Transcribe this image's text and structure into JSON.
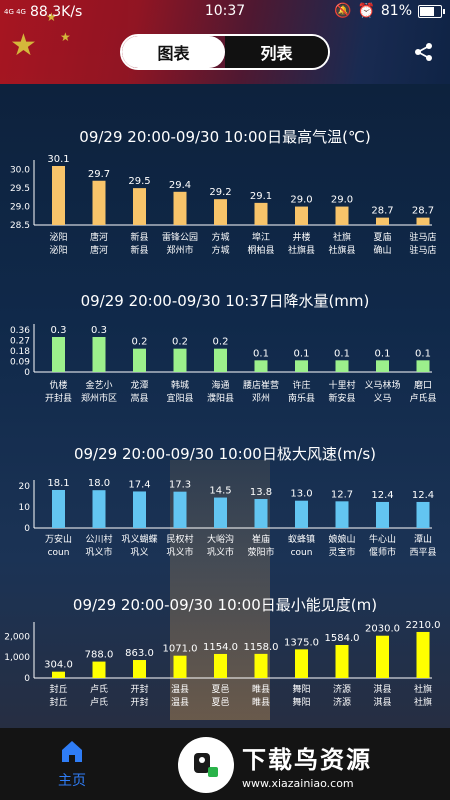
{
  "status_bar": {
    "signal": "4G 4G",
    "speed": "88.3K/s",
    "time": "10:37",
    "battery": "81%",
    "battery_level": 0.81
  },
  "toggle": {
    "chart_label": "图表",
    "list_label": "列表"
  },
  "share": {
    "icon": "share-icon"
  },
  "colors": {
    "temp": "#f8c46a",
    "rain": "#9cf08c",
    "wind": "#63c5f1",
    "vis": "#ffff00"
  },
  "chart_data": [
    {
      "type": "bar",
      "title": "09/29 20:00-09/30 10:00日最高气温(℃)",
      "categories": [
        [
          "泌阳",
          "泌阳"
        ],
        [
          "唐河",
          "唐河"
        ],
        [
          "新县",
          "新县"
        ],
        [
          "雷锋公园",
          "郑州市"
        ],
        [
          "方城",
          "方城"
        ],
        [
          "埠江",
          "桐柏县"
        ],
        [
          "井楼",
          "社旗县"
        ],
        [
          "社旗",
          "社旗县"
        ],
        [
          "夏庙",
          "确山"
        ],
        [
          "驻马店",
          "驻马店"
        ]
      ],
      "values": [
        30.1,
        29.7,
        29.5,
        29.4,
        29.2,
        29.1,
        29.0,
        29.0,
        28.7,
        28.7
      ],
      "data_labels": [
        "30.1",
        "29.7",
        "29.5",
        "29.4",
        "29.2",
        "29.1",
        "29.0",
        "29.0",
        "28.7",
        "28.7"
      ],
      "yticks": [
        "30.0",
        "29.5",
        "29.0",
        "28.5"
      ],
      "ylim": [
        28.5,
        30.1
      ],
      "xlabel": "",
      "ylabel": "",
      "color": "#f8c46a"
    },
    {
      "type": "bar",
      "title": "09/29 20:00-09/30 10:37日降水量(mm)",
      "categories": [
        [
          "仇楼",
          "开封县"
        ],
        [
          "金艺小",
          "郑州市区"
        ],
        [
          "龙潭",
          "嵩县"
        ],
        [
          "韩城",
          "宜阳县"
        ],
        [
          "海通",
          "濮阳县"
        ],
        [
          "腰店崔营",
          "邓州"
        ],
        [
          "许庄",
          "南乐县"
        ],
        [
          "十里村",
          "新安县"
        ],
        [
          "义马林场",
          "义马"
        ],
        [
          "磨口",
          "卢氏县"
        ]
      ],
      "values": [
        0.3,
        0.3,
        0.2,
        0.2,
        0.2,
        0.1,
        0.1,
        0.1,
        0.1,
        0.1
      ],
      "data_labels": [
        "0.3",
        "0.3",
        "0.2",
        "0.2",
        "0.2",
        "0.1",
        "0.1",
        "0.1",
        "0.1",
        "0.1"
      ],
      "yticks": [
        "0.36",
        "0.27",
        "0.18",
        "0.09",
        "0"
      ],
      "ylim": [
        0,
        0.36
      ],
      "xlabel": "",
      "ylabel": "",
      "color": "#9cf08c"
    },
    {
      "type": "bar",
      "title": "09/29 20:00-09/30 10:00日极大风速(m/s)",
      "categories": [
        [
          "万安山",
          "coun"
        ],
        [
          "公川村",
          "巩义市"
        ],
        [
          "巩义蝴蝶",
          "巩义"
        ],
        [
          "民权村",
          "巩义市"
        ],
        [
          "大峪沟",
          "巩义市"
        ],
        [
          "崔庙",
          "荥阳市"
        ],
        [
          "蚁蜂镇",
          "coun"
        ],
        [
          "娘娘山",
          "灵宝市"
        ],
        [
          "牛心山",
          "偃师市"
        ],
        [
          "潭山",
          "西平县"
        ]
      ],
      "values": [
        18.1,
        18.0,
        17.4,
        17.3,
        14.5,
        13.8,
        13.0,
        12.7,
        12.4,
        12.4
      ],
      "data_labels": [
        "18.1",
        "18.0",
        "17.4",
        "17.3",
        "14.5",
        "13.8",
        "13.0",
        "12.7",
        "12.4",
        "12.4"
      ],
      "yticks": [
        "20",
        "10",
        "0"
      ],
      "ylim": [
        0,
        20
      ],
      "xlabel": "",
      "ylabel": "",
      "color": "#63c5f1"
    },
    {
      "type": "bar",
      "title": "09/29 20:00-09/30 10:00日最小能见度(m)",
      "categories": [
        [
          "封丘",
          "封丘"
        ],
        [
          "卢氏",
          "卢氏"
        ],
        [
          "开封",
          "开封"
        ],
        [
          "温县",
          "温县"
        ],
        [
          "夏邑",
          "夏邑"
        ],
        [
          "睢县",
          "睢县"
        ],
        [
          "舞阳",
          "舞阳"
        ],
        [
          "济源",
          "济源"
        ],
        [
          "淇县",
          "淇县"
        ],
        [
          "社旗",
          "社旗"
        ]
      ],
      "values": [
        304.0,
        788.0,
        863.0,
        1071.0,
        1154.0,
        1158.0,
        1375.0,
        1584.0,
        2030.0,
        2210.0
      ],
      "data_labels": [
        "304.0",
        "788.0",
        "863.0",
        "1071.0",
        "1154.0",
        "1158.0",
        "1375.0",
        "1584.0",
        "2030.0",
        "2210.0"
      ],
      "yticks": [
        "2,000",
        "1,000",
        "0"
      ],
      "ylim": [
        0,
        2400
      ],
      "xlabel": "",
      "ylabel": "",
      "color": "#ffff00"
    }
  ],
  "bottom_nav": {
    "home_label": "主页"
  },
  "watermark": {
    "brand": "下载鸟资源",
    "url": "www.xiazainiao.com"
  }
}
